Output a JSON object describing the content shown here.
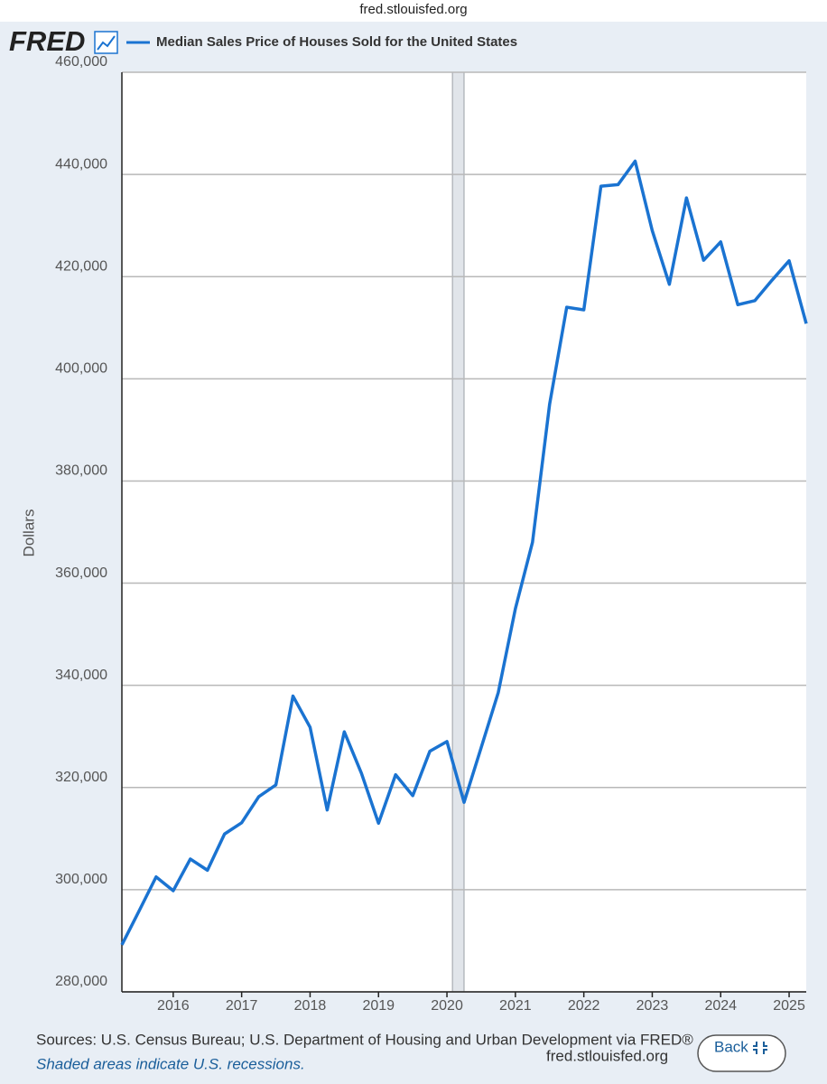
{
  "page": {
    "url": "fred.stlouisfed.org",
    "logo": "FRED",
    "sources": "Sources: U.S. Census Bureau; U.S. Department of Housing and Urban Development via FRED®",
    "note": "Shaded areas indicate U.S. recessions.",
    "footer_url": "fred.stlouisfed.org",
    "back": "Back"
  },
  "chart_data": {
    "type": "line",
    "ylabel": "Dollars",
    "x": [
      2015.25,
      2015.5,
      2015.75,
      2016,
      2016.25,
      2016.5,
      2016.75,
      2017,
      2017.25,
      2017.5,
      2017.75,
      2018,
      2018.25,
      2018.5,
      2018.75,
      2019,
      2019.25,
      2019.5,
      2019.75,
      2020,
      2020.25,
      2020.5,
      2020.75,
      2021,
      2021.25,
      2021.5,
      2021.75,
      2022,
      2022.25,
      2022.5,
      2022.75,
      2023,
      2023.25,
      2023.5,
      2023.75,
      2024,
      2024.25,
      2024.5,
      2024.75,
      2025,
      2025.25
    ],
    "series": [
      {
        "name": "Median Sales Price of Houses Sold for the United States",
        "color": "#1a73d1",
        "values": [
          289200,
          295800,
          302500,
          299800,
          306000,
          303800,
          310900,
          313100,
          318200,
          320500,
          337900,
          331800,
          315600,
          330900,
          322800,
          313000,
          322500,
          318400,
          327100,
          329000,
          317100,
          327800,
          338600,
          355000,
          368000,
          395000,
          414000,
          413500,
          437700,
          438000,
          442600,
          429000,
          418500,
          435400,
          423200,
          426800,
          414500,
          415300,
          419300,
          423100,
          410800
        ]
      }
    ],
    "recessions": [
      [
        2020.08,
        2020.25
      ]
    ],
    "xlim": [
      2015.25,
      2025.25
    ],
    "xticks": [
      2016,
      2017,
      2018,
      2019,
      2020,
      2021,
      2022,
      2023,
      2024,
      2025
    ],
    "ylim": [
      280000,
      460000
    ],
    "yticks": [
      {
        "value": 280000,
        "label": "280,000"
      },
      {
        "value": 300000,
        "label": "300,000"
      },
      {
        "value": 320000,
        "label": "320,000"
      },
      {
        "value": 340000,
        "label": "340,000"
      },
      {
        "value": 360000,
        "label": "360,000"
      },
      {
        "value": 380000,
        "label": "380,000"
      },
      {
        "value": 400000,
        "label": "400,000"
      },
      {
        "value": 420000,
        "label": "420,000"
      },
      {
        "value": 440000,
        "label": "440,000"
      },
      {
        "value": 460000,
        "label": "460,000"
      }
    ],
    "grid": true
  }
}
